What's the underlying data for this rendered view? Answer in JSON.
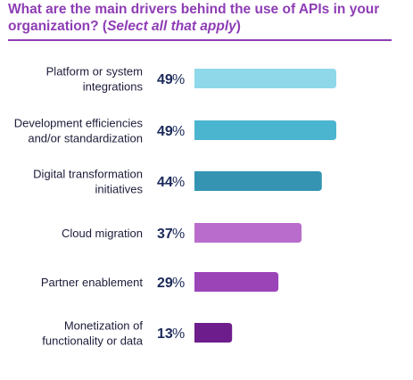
{
  "title": {
    "main": "What are the main drivers behind the use of APIs in your organization? (",
    "sub": "Select all that apply",
    "close": ")"
  },
  "chart_data": {
    "type": "bar",
    "orientation": "horizontal",
    "categories": [
      [
        "Platform or system",
        "integrations"
      ],
      [
        "Development efficiencies",
        "and/or standardization"
      ],
      [
        "Digital transformation",
        "initiatives"
      ],
      [
        "Cloud migration"
      ],
      [
        "Partner enablement"
      ],
      [
        "Monetization of",
        "functionality or data"
      ]
    ],
    "values": [
      49,
      49,
      44,
      37,
      29,
      13
    ],
    "value_suffix": "%",
    "colors": [
      "#8fd8ea",
      "#4bb5cf",
      "#3494b2",
      "#b96ccb",
      "#9b44b8",
      "#6d1d8c"
    ],
    "xlim": [
      0,
      49
    ],
    "grid": false,
    "legend": "none"
  }
}
